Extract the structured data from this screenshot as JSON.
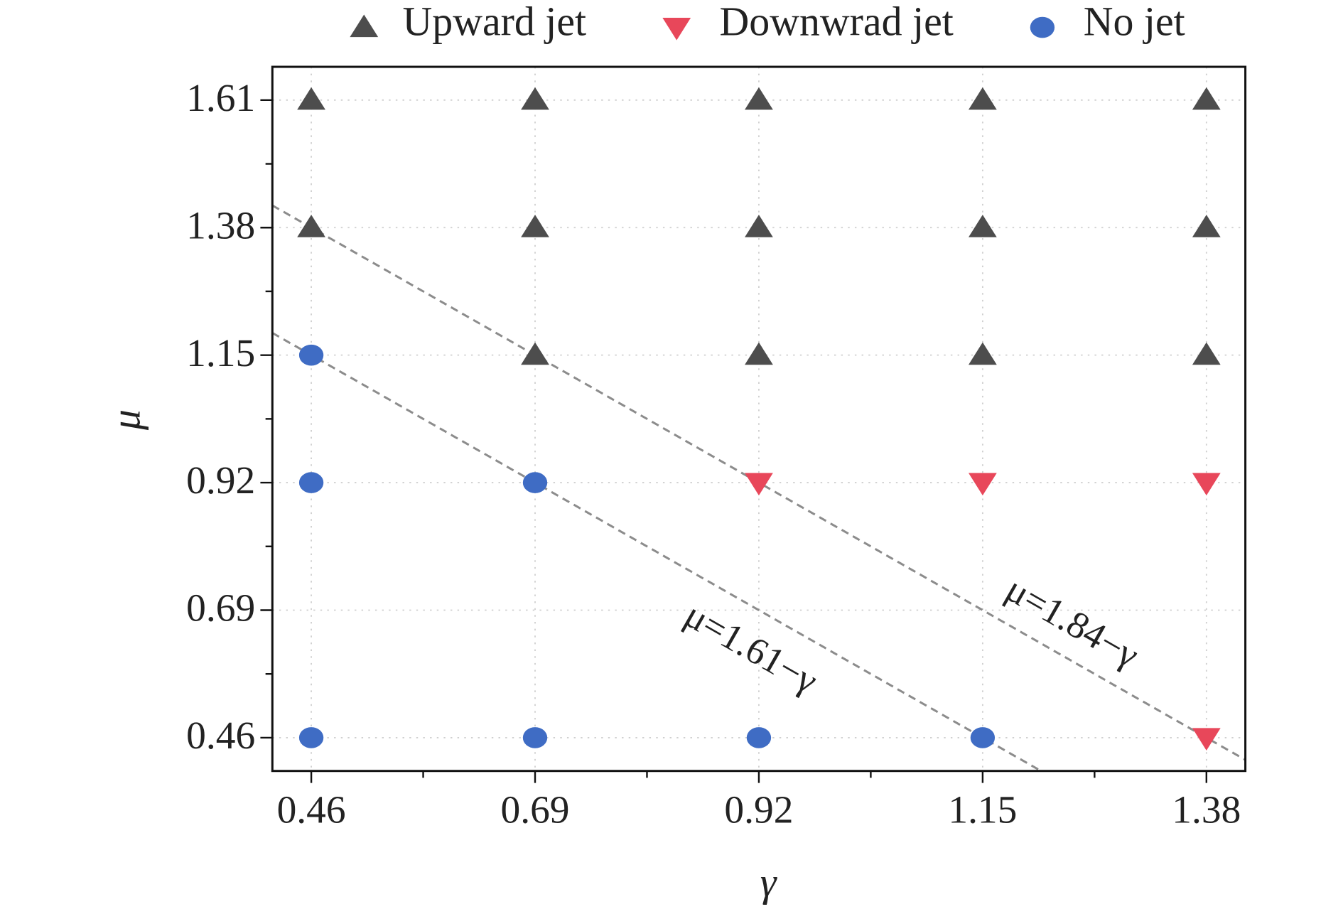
{
  "chart_data": {
    "type": "scatter",
    "x_label": "γ",
    "y_label": "μ",
    "xlim": [
      0.42,
      1.42
    ],
    "ylim": [
      0.4,
      1.67
    ],
    "xticks": [
      0.46,
      0.69,
      0.92,
      1.15,
      1.38
    ],
    "yticks": [
      0.46,
      0.69,
      0.92,
      1.15,
      1.38,
      1.61
    ],
    "grid": true,
    "legend": "top",
    "series": [
      {
        "name": "Upward jet",
        "marker": "triangle-up",
        "color": "#4d4d4d",
        "x": [
          0.46,
          0.69,
          0.92,
          1.15,
          1.38,
          0.46,
          0.69,
          0.92,
          1.15,
          1.38,
          0.69,
          0.92,
          1.15,
          1.38
        ],
        "values": [
          1.61,
          1.61,
          1.61,
          1.61,
          1.61,
          1.38,
          1.38,
          1.38,
          1.38,
          1.38,
          1.15,
          1.15,
          1.15,
          1.15
        ]
      },
      {
        "name": "Downwrad jet",
        "marker": "triangle-down",
        "color": "#e8475a",
        "x": [
          0.92,
          1.15,
          1.38,
          1.38
        ],
        "values": [
          0.92,
          0.92,
          0.92,
          0.46
        ]
      },
      {
        "name": "No jet",
        "marker": "circle",
        "color": "#3f6cc4",
        "x": [
          0.46,
          0.46,
          0.69,
          0.46,
          0.69,
          0.92,
          1.15
        ],
        "values": [
          1.15,
          0.92,
          0.92,
          0.46,
          0.46,
          0.46,
          0.46
        ]
      }
    ],
    "reference_lines": [
      {
        "label": "μ=1.61−γ",
        "intercept": 1.61,
        "slope": -1
      },
      {
        "label": "μ=1.84−γ",
        "intercept": 1.84,
        "slope": -1
      }
    ]
  }
}
